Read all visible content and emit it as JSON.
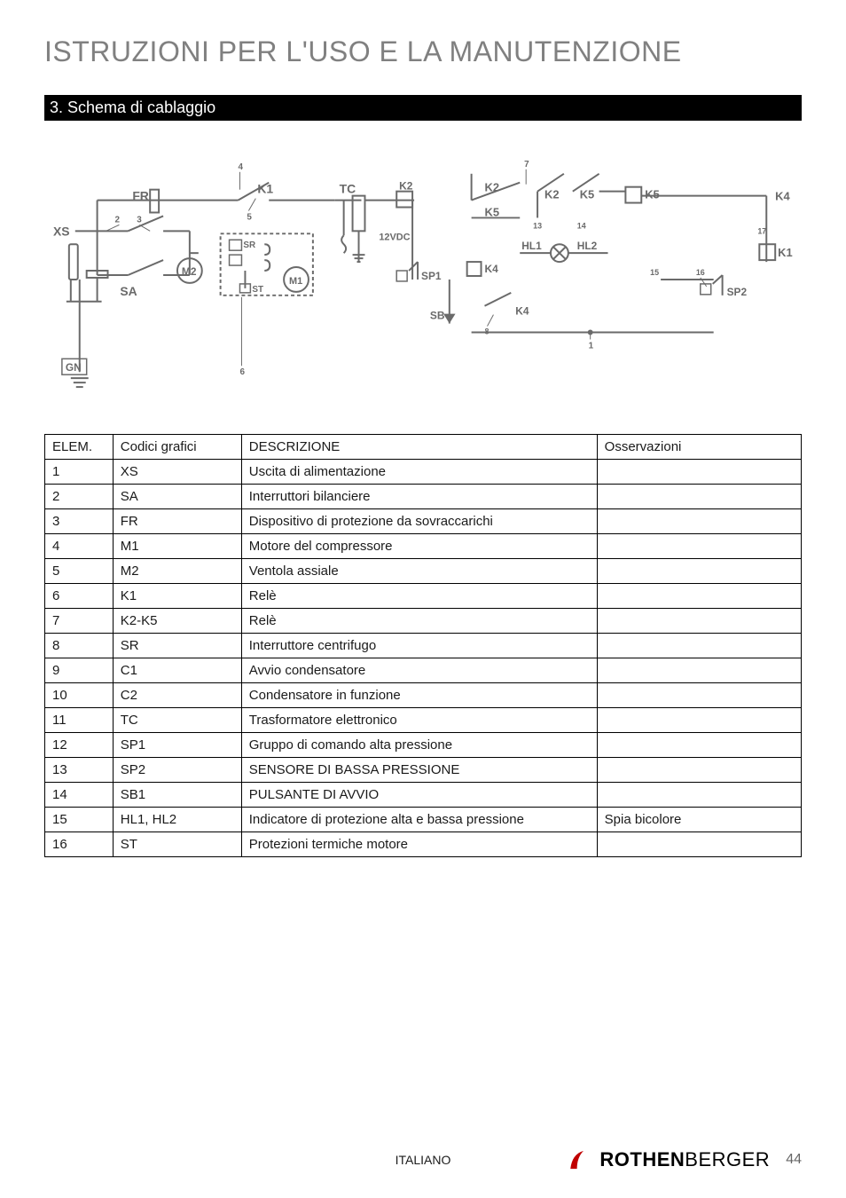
{
  "title": "ISTRUZIONI PER L'USO E LA MANUTENZIONE",
  "section_heading": "3. Schema di cablaggio",
  "diagram": {
    "type": "wiring-schematic",
    "background_color": "#ffffff",
    "stroke_color": "#6a6a6a",
    "label_color": "#6a6a6a",
    "stroke_width": 2,
    "label_fontsize": 14,
    "labels": {
      "XS": "XS",
      "FR": "FR",
      "SA": "SA",
      "M2": "M2",
      "SR": "SR",
      "ST": "ST",
      "M1": "M1",
      "K1": "K1",
      "TC": "TC",
      "12VDC": "12VDC",
      "K2a": "K2",
      "K2b": "K2",
      "K2c": "K2",
      "K5a": "K5",
      "K5b": "K5",
      "K5c": "K5",
      "K4a": "K4",
      "K4b": "K4",
      "K4c": "K4",
      "HL1": "HL1",
      "HL2": "HL2",
      "SP1": "SP1",
      "SP2": "SP2",
      "SB": "SB",
      "K1b": "K1",
      "GN": "GN",
      "n1": "1",
      "n2": "2",
      "n3": "3",
      "n4": "4",
      "n5": "5",
      "n6": "6",
      "n7": "7",
      "n8": "8",
      "n13": "13",
      "n14": "14",
      "n15": "15",
      "n16": "16",
      "n17": "17"
    }
  },
  "table": {
    "headers": [
      "ELEM.",
      "Codici grafici",
      "DESCRIZIONE",
      "Osservazioni"
    ],
    "col_widths": [
      "9%",
      "17%",
      "47%",
      "27%"
    ],
    "rows": [
      [
        "1",
        "XS",
        "Uscita di alimentazione",
        ""
      ],
      [
        "2",
        "SA",
        "Interruttori bilanciere",
        ""
      ],
      [
        "3",
        "FR",
        "Dispositivo di protezione da sovraccarichi",
        ""
      ],
      [
        "4",
        "M1",
        "Motore del compressore",
        ""
      ],
      [
        "5",
        "M2",
        "Ventola assiale",
        ""
      ],
      [
        "6",
        "K1",
        "Relè",
        ""
      ],
      [
        "7",
        "K2-K5",
        "Relè",
        ""
      ],
      [
        "8",
        "SR",
        "Interruttore centrifugo",
        ""
      ],
      [
        "9",
        "C1",
        "Avvio condensatore",
        ""
      ],
      [
        "10",
        "C2",
        "Condensatore in funzione",
        ""
      ],
      [
        "11",
        "TC",
        "Trasformatore elettronico",
        ""
      ],
      [
        "12",
        "SP1",
        "Gruppo di comando alta pressione",
        ""
      ],
      [
        "13",
        "SP2",
        "SENSORE DI BASSA PRESSIONE",
        ""
      ],
      [
        "14",
        "SB1",
        "PULSANTE DI AVVIO",
        ""
      ],
      [
        "15",
        "HL1, HL2",
        "Indicatore di protezione alta e bassa pressione",
        "Spia bicolore"
      ],
      [
        "16",
        "ST",
        "Protezioni termiche motore",
        ""
      ]
    ],
    "border_color": "#000000",
    "font_size": 15
  },
  "footer": {
    "language": "ITALIANO",
    "brand_bold": "ROTHEN",
    "brand_rest": "BERGER",
    "page_number": "44",
    "swoosh_color": "#c00000"
  }
}
